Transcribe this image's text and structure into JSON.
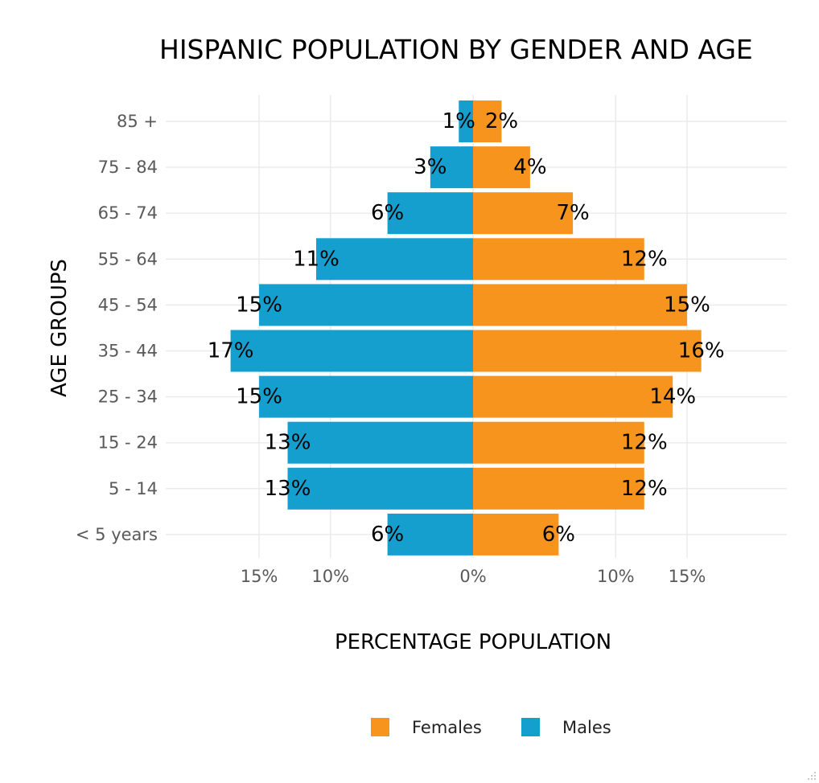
{
  "colors": {
    "females": "#F7941E",
    "males": "#159FCF",
    "grid": "#EBEBEB",
    "background": "#FFFFFF"
  },
  "chart_data": {
    "type": "bar",
    "orientation": "horizontal",
    "title": "HISPANIC POPULATION BY GENDER AND AGE",
    "xlabel": "PERCENTAGE POPULATION",
    "ylabel": "AGE GROUPS",
    "categories": [
      "85 +",
      "75  -  84",
      "65  -  74",
      "55  -  64",
      "45  -  54",
      "35  -  44",
      "25  -  34",
      "15  -  24",
      "5 - 14",
      "<  5 years"
    ],
    "series": [
      {
        "name": "Males",
        "color": "#159FCF",
        "values": [
          1,
          3,
          6,
          11,
          15,
          17,
          15,
          13,
          13,
          6
        ],
        "labels": [
          "1%",
          "3%",
          "6%",
          "11%",
          "15%",
          "17%",
          "15%",
          "13%",
          "13%",
          "6%"
        ]
      },
      {
        "name": "Females",
        "color": "#F7941E",
        "values": [
          2,
          4,
          7,
          12,
          15,
          16,
          14,
          12,
          12,
          6
        ],
        "labels": [
          "2%",
          "4%",
          "7%",
          "12%",
          "15%",
          "16%",
          "14%",
          "12%",
          "12%",
          "6%"
        ]
      }
    ],
    "xlim": [
      -22,
      22
    ],
    "xticks": [
      {
        "value": -15,
        "label": "15%"
      },
      {
        "value": -10,
        "label": "10%"
      },
      {
        "value": 0,
        "label": "0%"
      },
      {
        "value": 10,
        "label": "10%"
      },
      {
        "value": 15,
        "label": "15%"
      }
    ],
    "legend": {
      "position": "bottom",
      "entries": [
        {
          "name": "Females",
          "color": "#F7941E"
        },
        {
          "name": "Males",
          "color": "#159FCF"
        }
      ]
    },
    "grid": true
  }
}
